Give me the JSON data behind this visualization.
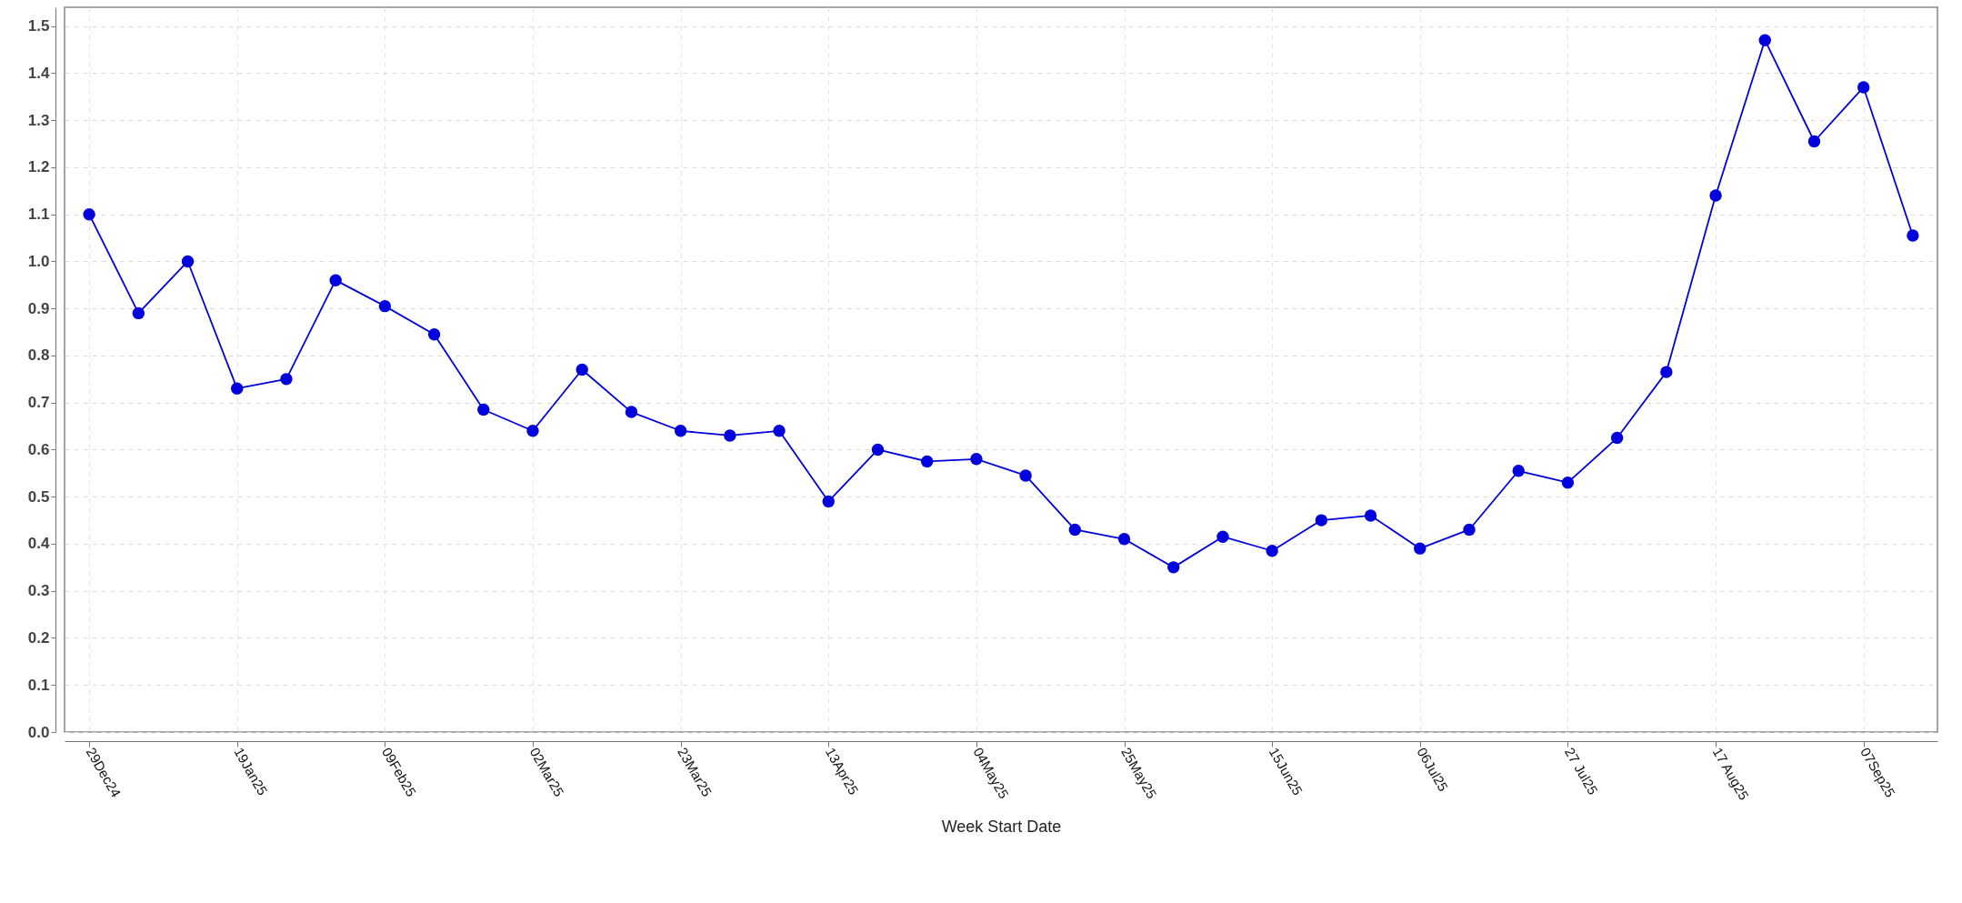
{
  "chart_data": {
    "type": "line",
    "xlabel": "Week Start Date",
    "x": [
      "2024-12-29",
      "2025-01-05",
      "2025-01-12",
      "2025-01-19",
      "2025-01-26",
      "2025-02-02",
      "2025-02-09",
      "2025-02-16",
      "2025-02-23",
      "2025-03-02",
      "2025-03-09",
      "2025-03-16",
      "2025-03-23",
      "2025-03-30",
      "2025-04-06",
      "2025-04-13",
      "2025-04-20",
      "2025-04-27",
      "2025-05-04",
      "2025-05-11",
      "2025-05-18",
      "2025-05-25",
      "2025-06-01",
      "2025-06-08",
      "2025-06-15",
      "2025-06-22",
      "2025-06-29",
      "2025-07-06",
      "2025-07-13",
      "2025-07-20",
      "2025-07-27",
      "2025-08-03",
      "2025-08-10",
      "2025-08-17",
      "2025-08-24",
      "2025-08-31",
      "2025-09-07",
      "2025-09-14"
    ],
    "series": [
      {
        "color": "#0000dd",
        "values": [
          1.1,
          0.89,
          1.0,
          0.73,
          0.75,
          0.96,
          0.905,
          0.845,
          0.685,
          0.64,
          0.77,
          0.68,
          0.64,
          0.63,
          0.64,
          0.49,
          0.6,
          0.575,
          0.58,
          0.545,
          0.43,
          0.41,
          0.35,
          0.415,
          0.385,
          0.45,
          0.46,
          0.39,
          0.43,
          0.555,
          0.53,
          0.625,
          0.765,
          1.14,
          1.47,
          1.255,
          1.37,
          1.055
        ]
      }
    ],
    "xlim": [
      "2024-12-25T12:00",
      "2025-09-17T12:00"
    ],
    "xticks": [
      {
        "value": "2024-12-29",
        "label": "29Dec24"
      },
      {
        "value": "2025-01-19",
        "label": "19Jan25"
      },
      {
        "value": "2025-02-09",
        "label": "09Feb25"
      },
      {
        "value": "2025-03-02",
        "label": "02Mar25"
      },
      {
        "value": "2025-03-23",
        "label": "23Mar25"
      },
      {
        "value": "2025-04-13",
        "label": "13Apr25"
      },
      {
        "value": "2025-05-04",
        "label": "04May25"
      },
      {
        "value": "2025-05-25",
        "label": "25May25"
      },
      {
        "value": "2025-06-15",
        "label": "15Jun25"
      },
      {
        "value": "2025-07-06",
        "label": "06Jul25"
      },
      {
        "value": "2025-07-27",
        "label": "27 Jul25"
      },
      {
        "value": "2025-08-17",
        "label": "17 Aug25"
      },
      {
        "value": "2025-09-07",
        "label": "07Sep25"
      }
    ],
    "ylim": [
      0,
      1.54
    ],
    "yticks": [
      {
        "value": 0,
        "label": "0.0"
      },
      0.1,
      0.2,
      0.3,
      0.4,
      0.5,
      0.6,
      0.7,
      0.8,
      0.9,
      {
        "value": 1,
        "label": "1.0"
      },
      1.1,
      1.2,
      1.3,
      1.4,
      1.5
    ],
    "grid": true,
    "marker": "circle",
    "line_style": "solid"
  }
}
